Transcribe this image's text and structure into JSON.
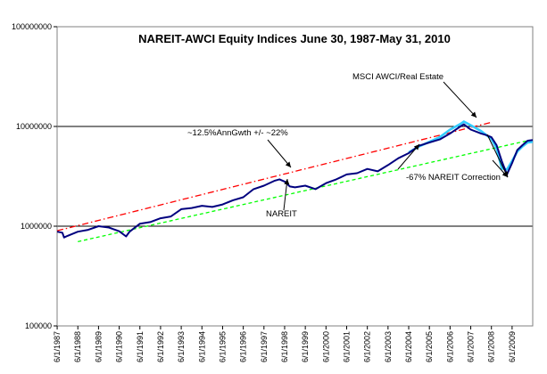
{
  "chart_data": {
    "type": "line",
    "title": "NAREIT-AWCI Equity Indices June 30, 1987-May 31, 2010",
    "xlabel": "",
    "ylabel": "",
    "y_scale": "log",
    "ylim": [
      100000,
      100000000
    ],
    "y_ticks": [
      "100000",
      "1000000",
      "10000000",
      "100000000"
    ],
    "y_tick_values": [
      100000,
      1000000,
      10000000,
      100000000
    ],
    "x_range": [
      1987.414,
      2010.414
    ],
    "x_ticks": [
      "6/1/1987",
      "6/1/1988",
      "6/1/1989",
      "6/1/1990",
      "6/1/1991",
      "6/1/1992",
      "6/1/1993",
      "6/1/1994",
      "6/1/1995",
      "6/1/1996",
      "6/1/1997",
      "6/1/1998",
      "6/1/1999",
      "6/1/2000",
      "6/1/2001",
      "6/1/2002",
      "6/1/2003",
      "6/1/2004",
      "6/1/2005",
      "6/1/2006",
      "6/1/2007",
      "6/1/2008",
      "6/1/2009"
    ],
    "gridlines": "horizontal at 1000000 and 10000000",
    "legend": "none",
    "series": [
      {
        "name": "NAREIT",
        "color": "#00007f",
        "points": [
          [
            "6/1/1987",
            880000
          ],
          [
            "9/1/1987",
            860000
          ],
          [
            "10/1/1987",
            770000
          ],
          [
            "12/1/1987",
            800000
          ],
          [
            "6/1/1988",
            880000
          ],
          [
            "12/1/1988",
            920000
          ],
          [
            "6/1/1989",
            1000000
          ],
          [
            "12/1/1989",
            970000
          ],
          [
            "6/1/1990",
            890000
          ],
          [
            "10/1/1990",
            790000
          ],
          [
            "12/1/1990",
            880000
          ],
          [
            "6/1/1991",
            1060000
          ],
          [
            "12/1/1991",
            1100000
          ],
          [
            "6/1/1992",
            1200000
          ],
          [
            "12/1/1992",
            1250000
          ],
          [
            "6/1/1993",
            1480000
          ],
          [
            "12/1/1993",
            1520000
          ],
          [
            "6/1/1994",
            1600000
          ],
          [
            "12/1/1994",
            1560000
          ],
          [
            "6/1/1995",
            1650000
          ],
          [
            "12/1/1995",
            1820000
          ],
          [
            "6/1/1996",
            1950000
          ],
          [
            "12/1/1996",
            2350000
          ],
          [
            "6/1/1997",
            2550000
          ],
          [
            "12/1/1997",
            2850000
          ],
          [
            "3/1/1998",
            2950000
          ],
          [
            "6/1/1998",
            2800000
          ],
          [
            "9/1/1998",
            2500000
          ],
          [
            "12/1/1998",
            2450000
          ],
          [
            "6/1/1999",
            2550000
          ],
          [
            "12/1/1999",
            2350000
          ],
          [
            "6/1/2000",
            2700000
          ],
          [
            "12/1/2000",
            2950000
          ],
          [
            "6/1/2001",
            3300000
          ],
          [
            "12/1/2001",
            3400000
          ],
          [
            "6/1/2002",
            3750000
          ],
          [
            "12/1/2002",
            3550000
          ],
          [
            "6/1/2003",
            4100000
          ],
          [
            "12/1/2003",
            4800000
          ],
          [
            "6/1/2004",
            5400000
          ],
          [
            "12/1/2004",
            6400000
          ],
          [
            "6/1/2005",
            6900000
          ],
          [
            "12/1/2005",
            7400000
          ],
          [
            "6/1/2006",
            8500000
          ],
          [
            "12/1/2006",
            10000000
          ],
          [
            "2/1/2007",
            10500000
          ],
          [
            "6/1/2007",
            9300000
          ],
          [
            "12/1/2007",
            8500000
          ],
          [
            "3/1/2008",
            8200000
          ],
          [
            "6/1/2008",
            7800000
          ],
          [
            "9/1/2008",
            6500000
          ],
          [
            "12/1/2008",
            4500000
          ],
          [
            "3/1/2009",
            3300000
          ],
          [
            "6/1/2009",
            4300000
          ],
          [
            "9/1/2009",
            5800000
          ],
          [
            "12/1/2009",
            6500000
          ],
          [
            "3/1/2010",
            7200000
          ],
          [
            "5/31/2010",
            7300000
          ]
        ]
      },
      {
        "name": "MSCI AWCI/Real Estate",
        "color": "#33ccff",
        "points": [
          [
            "6/1/2004",
            5500000
          ],
          [
            "12/1/2004",
            6300000
          ],
          [
            "6/1/2005",
            7000000
          ],
          [
            "12/1/2005",
            7800000
          ],
          [
            "6/1/2006",
            9300000
          ],
          [
            "12/1/2006",
            10600000
          ],
          [
            "2/1/2007",
            11200000
          ],
          [
            "6/1/2007",
            10300000
          ],
          [
            "12/1/2007",
            9000000
          ],
          [
            "6/1/2008",
            7500000
          ],
          [
            "9/1/2008",
            6000000
          ],
          [
            "12/1/2008",
            3800000
          ],
          [
            "3/1/2009",
            3700000
          ],
          [
            "6/1/2009",
            4500000
          ],
          [
            "9/1/2009",
            5600000
          ],
          [
            "12/1/2009",
            6300000
          ],
          [
            "3/1/2010",
            6900000
          ],
          [
            "5/31/2010",
            7000000
          ]
        ]
      }
    ],
    "trend_lines": [
      {
        "style": "dash-dot",
        "color": "#ff0000",
        "start": [
          "6/1/1987",
          900000
        ],
        "end": [
          "6/1/2008",
          11000000
        ]
      },
      {
        "style": "dashed",
        "color": "#00ff00",
        "start": [
          "6/1/1988",
          700000
        ],
        "end": [
          "3/1/2010",
          7200000
        ]
      }
    ],
    "annotations": [
      {
        "text": "MSCI AWCI/Real Estate"
      },
      {
        "text": "~12.5%AnnGwth +/- ~22%"
      },
      {
        "text": "NAREIT"
      },
      {
        "text": "-67% NAREIT Correction"
      }
    ]
  }
}
